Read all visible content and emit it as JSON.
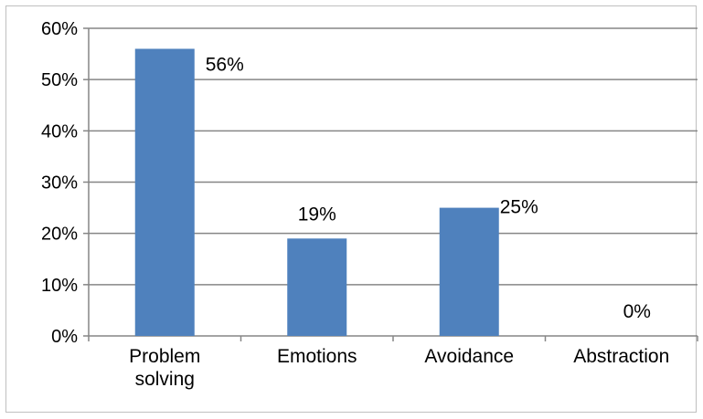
{
  "chart_data": {
    "type": "bar",
    "title": "",
    "xlabel": "",
    "ylabel": "",
    "categories": [
      [
        "Problem",
        "solving"
      ],
      [
        "Emotions"
      ],
      [
        "Avoidance"
      ],
      [
        "Abstraction"
      ]
    ],
    "values": [
      56,
      19,
      25,
      0
    ],
    "data_labels": [
      "56%",
      "19%",
      "25%",
      "0%"
    ],
    "ylim": [
      0,
      60
    ],
    "yticks": [
      0,
      10,
      20,
      30,
      40,
      50,
      60
    ],
    "ytick_labels": [
      "0%",
      "10%",
      "20%",
      "30%",
      "40%",
      "50%",
      "60%"
    ],
    "grid": true,
    "legend": "none",
    "bar_color": "#4f81bd",
    "grid_color": "#868686"
  }
}
